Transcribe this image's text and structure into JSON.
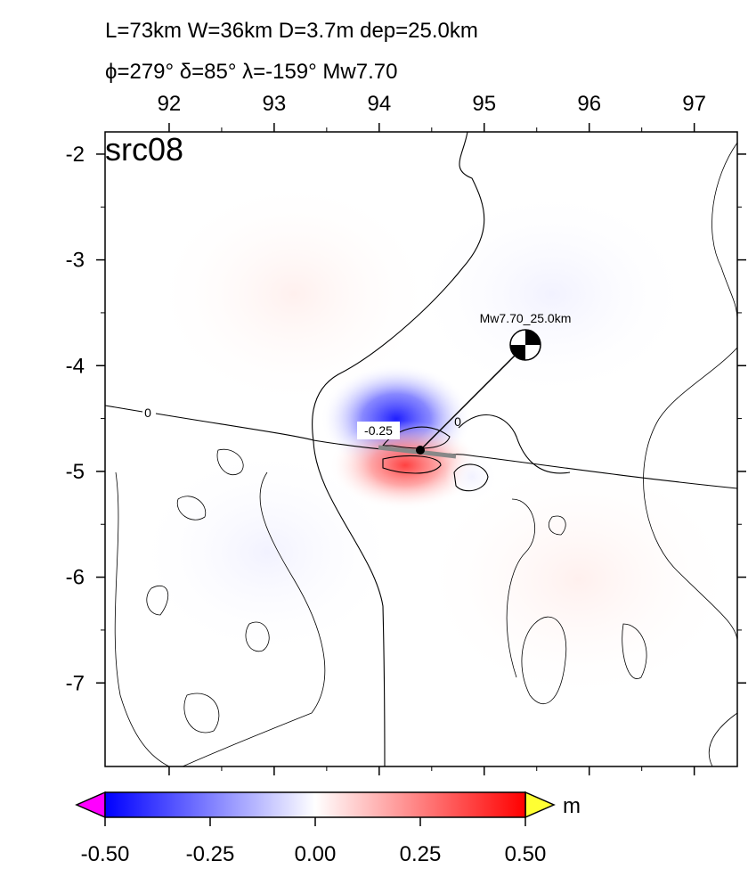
{
  "title_lines": [
    "L=73km W=36km D=3.7m dep=25.0km",
    "ϕ=279° δ=85° λ=-159° Mw7.70"
  ],
  "panel_label": "src08",
  "map": {
    "xlim": [
      91.39,
      97.41
    ],
    "xticks": [
      92,
      93,
      94,
      95,
      96,
      97
    ],
    "ylim": [
      -7.79,
      -1.79
    ],
    "yticks": [
      -2,
      -3,
      -4,
      -5,
      -6,
      -7
    ]
  },
  "contour_labels": [
    "0",
    "-0.25",
    "0"
  ],
  "mechanism_label": "Mw7.70_25.0km",
  "colorbar": {
    "lim": [
      -0.5,
      0.5
    ],
    "ticks": [
      {
        "value": -0.5,
        "label": "-0.50"
      },
      {
        "value": -0.25,
        "label": "-0.25"
      },
      {
        "value": 0,
        "label": "0.00"
      },
      {
        "value": 0.25,
        "label": "0.25"
      },
      {
        "value": 0.5,
        "label": "0.50"
      }
    ],
    "unit": "m"
  }
}
